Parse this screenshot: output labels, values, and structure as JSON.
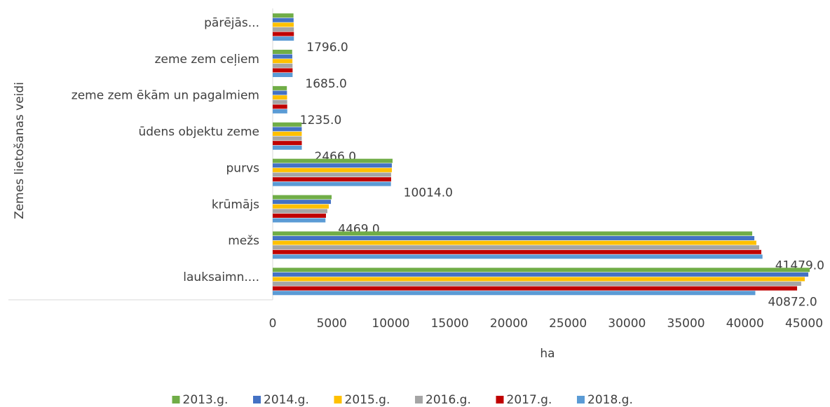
{
  "chart_data": {
    "type": "bar",
    "orientation": "horizontal",
    "categories": [
      "pārējās...",
      "zeme zem ceļiem",
      "zeme zem ēkām un pagalmiem",
      "ūdens objektu zeme",
      "purvs",
      "krūmājs",
      "mežs",
      "lauksaimn...."
    ],
    "series": [
      {
        "name": "2013.g.",
        "color": "#70ad47",
        "values": [
          1760,
          1650,
          1200,
          2450,
          10150,
          4990,
          40610,
          45480
        ]
      },
      {
        "name": "2014.g.",
        "color": "#4472c4",
        "values": [
          1770,
          1660,
          1210,
          2460,
          10090,
          4930,
          40790,
          45360
        ]
      },
      {
        "name": "2015.g.",
        "color": "#ffc000",
        "values": [
          1780,
          1670,
          1220,
          2460,
          10090,
          4750,
          40960,
          45060
        ]
      },
      {
        "name": "2016.g.",
        "color": "#a5a5a5",
        "values": [
          1790,
          1680,
          1225,
          2460,
          10030,
          4630,
          41200,
          44760
        ]
      },
      {
        "name": "2017.g.",
        "color": "#c00000",
        "values": [
          1796,
          1685,
          1230,
          2466,
          10030,
          4510,
          41380,
          44410
        ]
      },
      {
        "name": "2018.g.",
        "color": "#5b9bd5",
        "values": [
          1796,
          1685,
          1235,
          2466,
          10014,
          4469,
          41479,
          40872
        ],
        "value_labels": [
          "1796.0",
          "1685.0",
          "1235.0",
          "2466.0",
          "10014.0",
          "4469.0",
          "41479.0",
          "40872.0"
        ]
      }
    ],
    "xlim": [
      0,
      45000
    ],
    "xticks": [
      0,
      5000,
      10000,
      15000,
      20000,
      25000,
      30000,
      35000,
      40000,
      45000
    ],
    "x_label": "ha",
    "y_label": "Zemes lietošanas veidi",
    "grid": false,
    "legend": "bottom"
  }
}
